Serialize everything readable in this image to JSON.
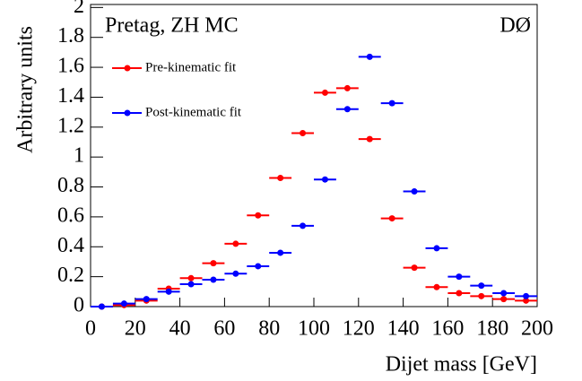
{
  "chart_data": {
    "type": "scatter",
    "title": "Pretag, ZH MC",
    "annotation": "DØ",
    "x_label": "Dijet mass [GeV]",
    "y_label": "Arbitrary units",
    "bins": [
      0,
      10,
      20,
      30,
      40,
      50,
      60,
      70,
      80,
      90,
      100,
      110,
      120,
      130,
      140,
      150,
      160,
      170,
      180,
      190,
      200
    ],
    "series": [
      {
        "name": "Pre-kinematic fit",
        "color": "#ff0000",
        "values": [
          0,
          0.01,
          0.04,
          0.12,
          0.19,
          0.29,
          0.42,
          0.61,
          0.86,
          1.16,
          1.43,
          1.46,
          1.12,
          0.59,
          0.26,
          0.13,
          0.09,
          0.07,
          0.05,
          0.04
        ]
      },
      {
        "name": "Post-kinematic fit",
        "color": "#0000ff",
        "values": [
          0,
          0.02,
          0.05,
          0.1,
          0.15,
          0.18,
          0.22,
          0.27,
          0.36,
          0.54,
          0.85,
          1.32,
          1.67,
          1.36,
          0.77,
          0.39,
          0.2,
          0.14,
          0.09,
          0.07
        ]
      }
    ],
    "xlim": [
      0,
      200
    ],
    "xticks": [
      0,
      20,
      40,
      60,
      80,
      100,
      120,
      140,
      160,
      180,
      200
    ],
    "ylim": [
      0,
      2.02
    ],
    "yticks": [
      0,
      0.2,
      0.4,
      0.6,
      0.8,
      1,
      1.2,
      1.4,
      1.6,
      1.8,
      2
    ],
    "legend": "top-left",
    "grid": false
  }
}
